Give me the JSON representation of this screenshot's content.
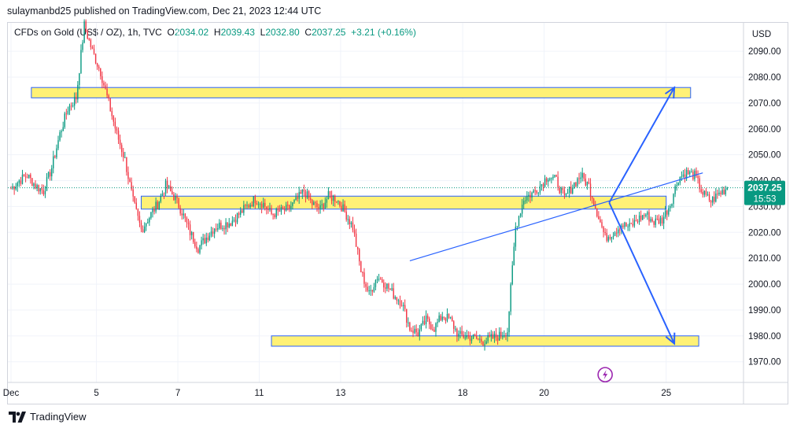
{
  "header": {
    "publisher_line": "sulaymanbd25 published on TradingView.com, Dec 21, 2023 12:44 UTC"
  },
  "legend": {
    "symbol": "CFDs on Gold (US$ / OZ), 1h, TVC",
    "open_label": "O",
    "open": "2034.02",
    "high_label": "H",
    "high": "2039.43",
    "low_label": "L",
    "low": "2032.80",
    "close_label": "C",
    "close": "2037.25",
    "change": "+3.21 (+0.16%)"
  },
  "price_axis": {
    "currency": "USD"
  },
  "last_price": {
    "value": "2037.25",
    "countdown": "15:53"
  },
  "footer": {
    "brand": "TradingView"
  },
  "colors": {
    "up": "#089981",
    "down": "#f23645",
    "zone_fill": "#fff176",
    "zone_border": "#2962ff",
    "arrow": "#2962ff",
    "grid": "#f0f3fa",
    "last_price_bg": "#089981"
  },
  "icons": {
    "footer_logo": "tradingview-logo-icon",
    "event_marker": "lightning-icon"
  },
  "chart_data": {
    "type": "candlestick",
    "timeframe": "1h",
    "ylim": [
      1962,
      2101
    ],
    "xlim": [
      0,
      90
    ],
    "y_ticks": [
      1970,
      1980,
      1990,
      2000,
      2010,
      2020,
      2030,
      2040,
      2050,
      2060,
      2070,
      2080,
      2090
    ],
    "x_ticks": [
      {
        "label": "Dec",
        "t": 0
      },
      {
        "label": "5",
        "t": 10.5
      },
      {
        "label": "7",
        "t": 20.5
      },
      {
        "label": "11",
        "t": 30.5
      },
      {
        "label": "13",
        "t": 40.5
      },
      {
        "label": "18",
        "t": 55.5
      },
      {
        "label": "20",
        "t": 65.5
      },
      {
        "label": "25",
        "t": 80.5
      }
    ],
    "grid": true,
    "last_price": 2037.25,
    "closes": [
      2037,
      2040,
      2042,
      2038,
      2036,
      2045,
      2058,
      2068,
      2072,
      2100,
      2090,
      2082,
      2070,
      2058,
      2048,
      2032,
      2021,
      2026,
      2031,
      2038,
      2034,
      2028,
      2020,
      2014,
      2018,
      2022,
      2023,
      2024,
      2027,
      2030,
      2033,
      2031,
      2027,
      2028,
      2029,
      2032,
      2036,
      2031,
      2029,
      2034,
      2033,
      2028,
      2022,
      2005,
      1996,
      2003,
      2000,
      1996,
      1993,
      1983,
      1981,
      1986,
      1983,
      1988,
      1986,
      1980,
      1980,
      1979,
      1978,
      1979,
      1980,
      1982,
      2022,
      2033,
      2035,
      2038,
      2042,
      2040,
      2033,
      2038,
      2042,
      2038,
      2028,
      2018,
      2020,
      2023,
      2022,
      2025,
      2027,
      2024,
      2025,
      2031,
      2041,
      2043,
      2042,
      2035,
      2032,
      2035,
      2037.25
    ],
    "zones": [
      {
        "from_t": 2.5,
        "to_t": 83.5,
        "low": 2072,
        "high": 2076
      },
      {
        "from_t": 16,
        "to_t": 80.5,
        "low": 2029,
        "high": 2034
      },
      {
        "from_t": 32,
        "to_t": 84.5,
        "low": 1976,
        "high": 1980
      }
    ],
    "trendline": {
      "from": {
        "t": 49,
        "price": 2009
      },
      "to": {
        "t": 85,
        "price": 2043
      }
    },
    "arrows": [
      {
        "from": {
          "t": 73.5,
          "price": 2031.5
        },
        "to": {
          "t": 81.5,
          "price": 2076
        }
      },
      {
        "from": {
          "t": 73.5,
          "price": 2031.5
        },
        "to": {
          "t": 81.5,
          "price": 1977
        }
      }
    ],
    "event_marker": {
      "t": 73,
      "price": 1965
    }
  }
}
